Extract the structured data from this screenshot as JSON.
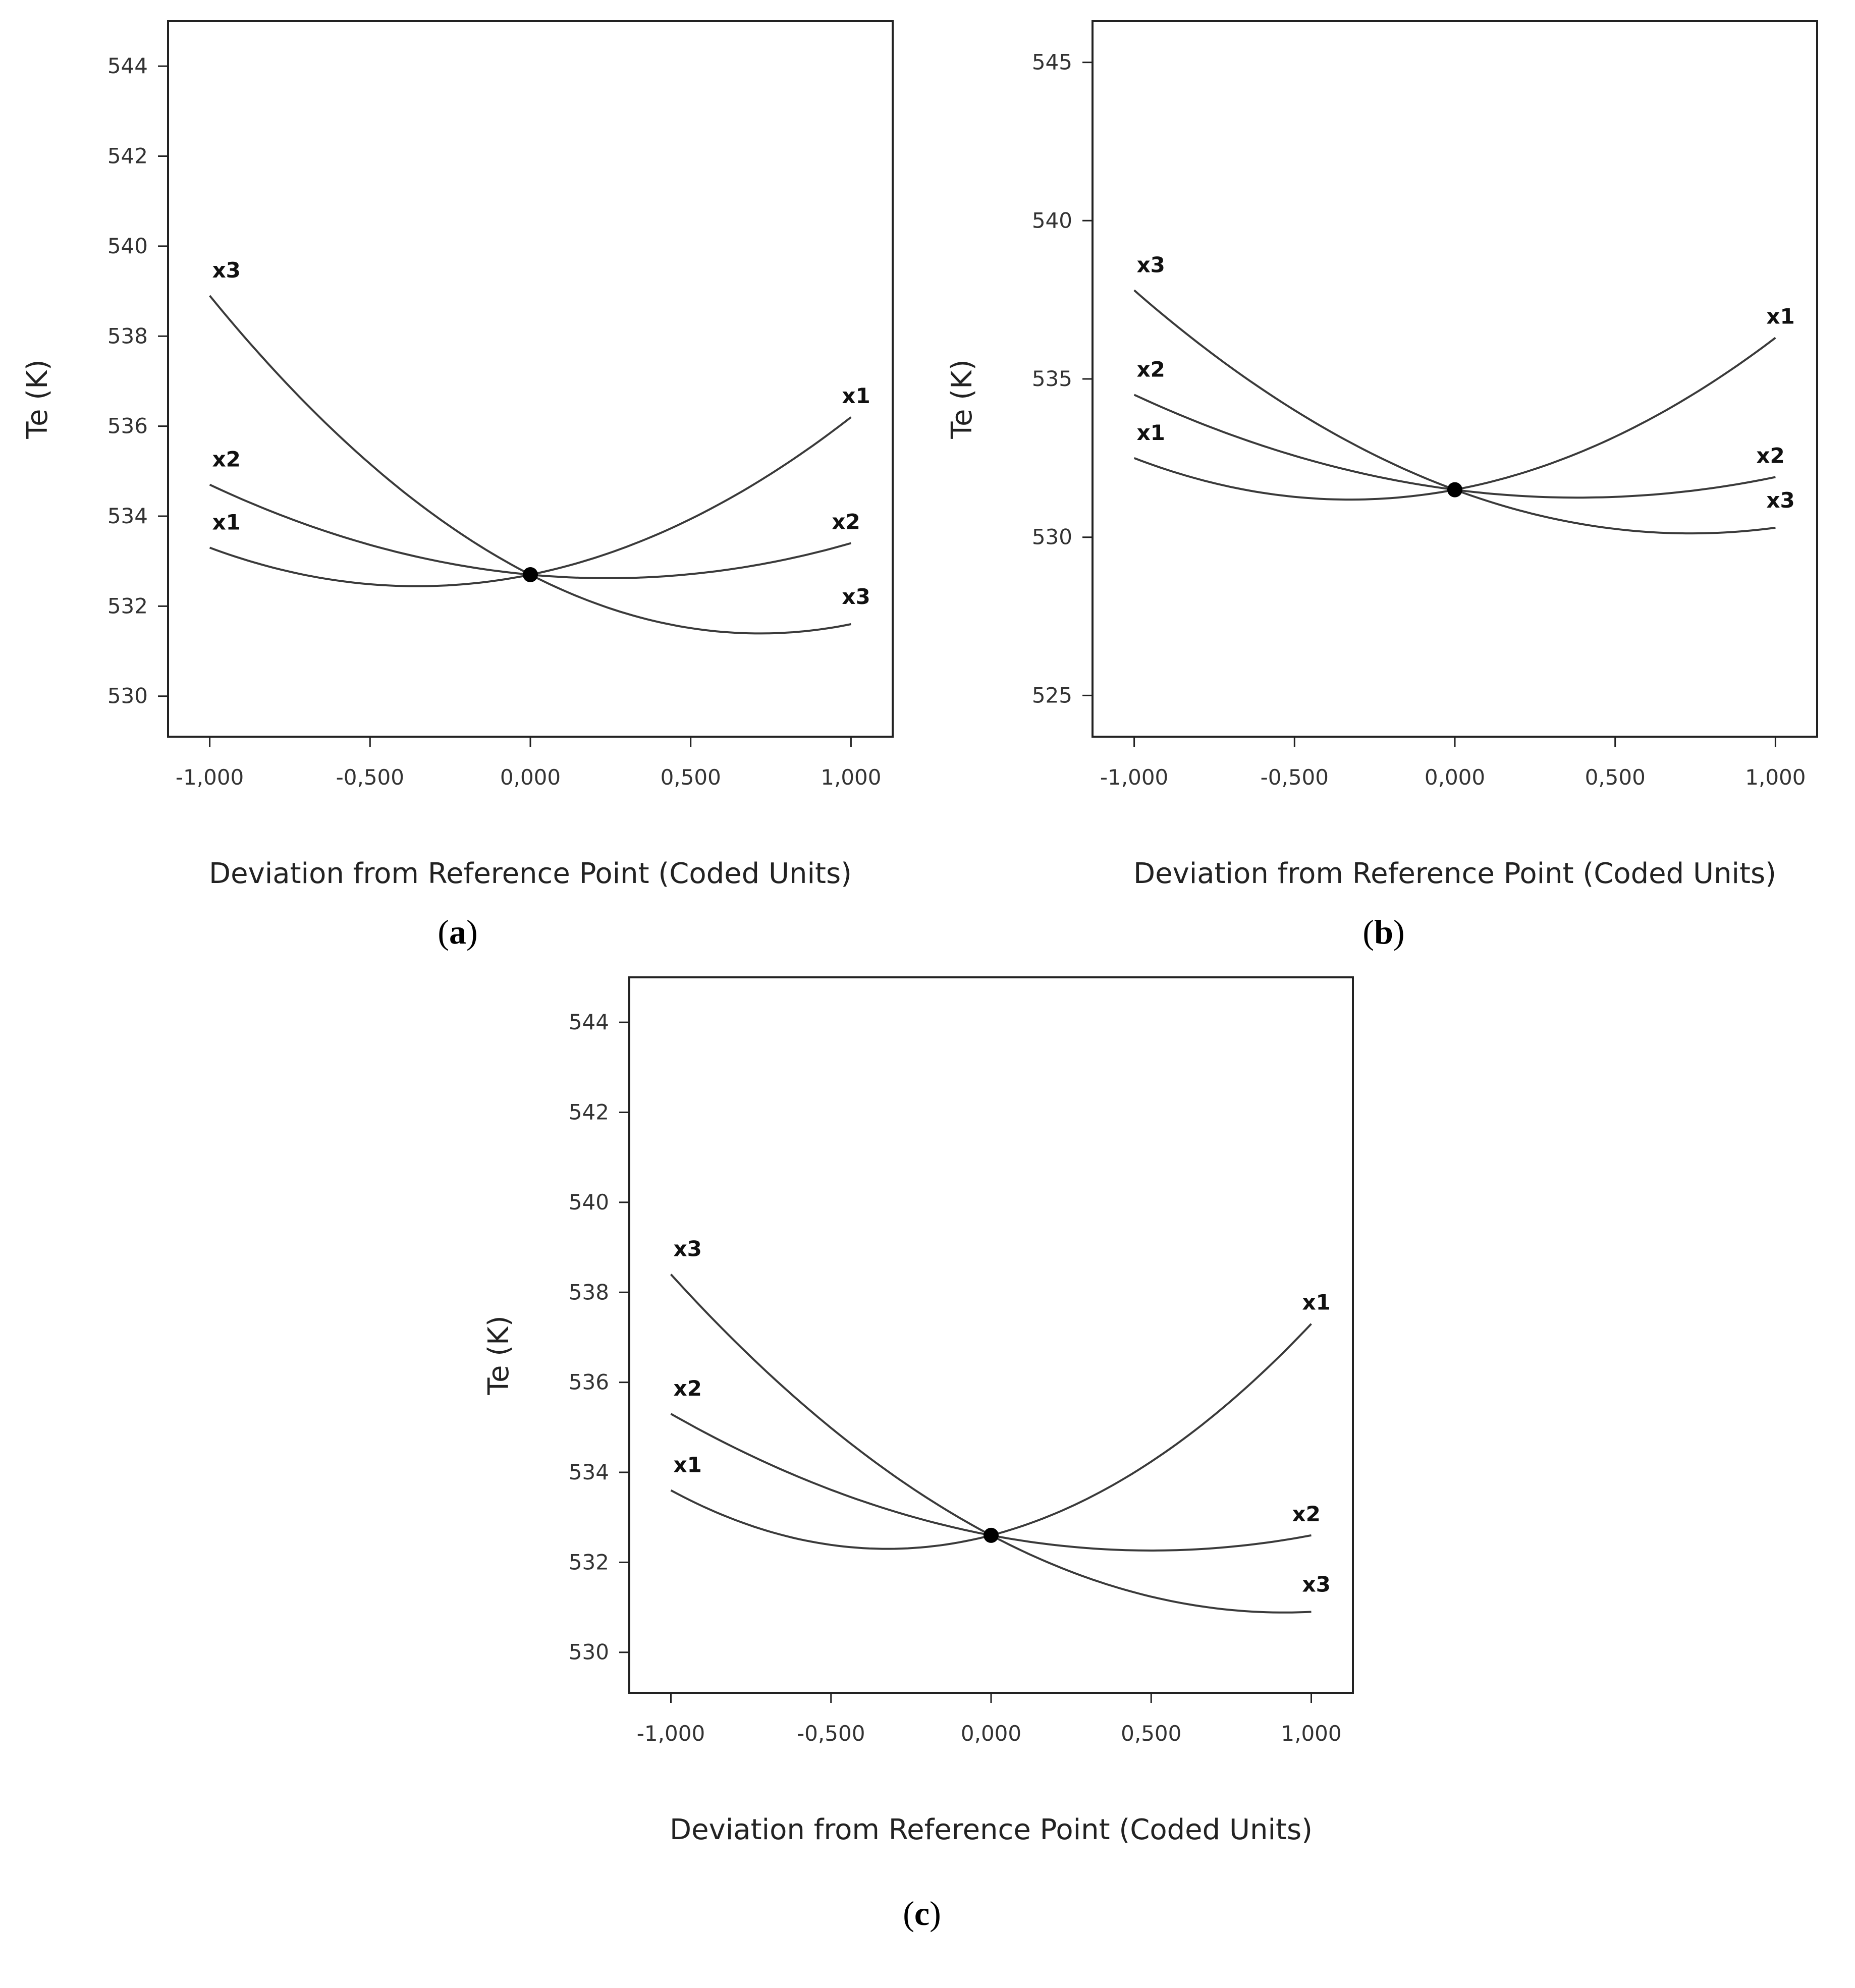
{
  "chart_data": [
    {
      "type": "line",
      "panel": "a",
      "xlabel": "Deviation from Reference Point (Coded Units)",
      "ylabel": "Te (K)",
      "xlim": [
        -1.13,
        1.13
      ],
      "ylim": [
        529.1,
        545.0
      ],
      "xticks": [
        -1,
        -0.5,
        0,
        0.5,
        1
      ],
      "xtick_labels": [
        "-1,000",
        "-0,500",
        "0,000",
        "0,500",
        "1,000"
      ],
      "yticks": [
        530,
        532,
        534,
        536,
        538,
        540,
        542,
        544
      ],
      "ytick_labels": [
        "530",
        "532",
        "534",
        "536",
        "538",
        "540",
        "542",
        "544"
      ],
      "grid": false,
      "reference_point": {
        "x": 0,
        "y": 532.7
      },
      "series": [
        {
          "name": "x1",
          "x": [
            -1,
            -0.5,
            0,
            0.5,
            1
          ],
          "values": [
            533.3,
            532.5,
            532.7,
            534.0,
            536.2
          ]
        },
        {
          "name": "x2",
          "x": [
            -1,
            -0.5,
            0,
            0.5,
            1
          ],
          "values": [
            534.7,
            533.4,
            532.7,
            532.6,
            533.4
          ]
        },
        {
          "name": "x3",
          "x": [
            -1,
            -0.5,
            0,
            0.5,
            1
          ],
          "values": [
            538.9,
            535.3,
            532.7,
            531.5,
            531.6
          ]
        }
      ]
    },
    {
      "type": "line",
      "panel": "b",
      "xlabel": "Deviation from Reference Point (Coded Units)",
      "ylabel": "Te (K)",
      "xlim": [
        -1.13,
        1.13
      ],
      "ylim": [
        523.7,
        546.3
      ],
      "xticks": [
        -1,
        -0.5,
        0,
        0.5,
        1
      ],
      "xtick_labels": [
        "-1,000",
        "-0,500",
        "0,000",
        "0,500",
        "1,000"
      ],
      "yticks": [
        525,
        530,
        535,
        540,
        545
      ],
      "ytick_labels": [
        "525",
        "530",
        "535",
        "540",
        "545"
      ],
      "grid": false,
      "reference_point": {
        "x": 0,
        "y": 531.5
      },
      "series": [
        {
          "name": "x1",
          "x": [
            -1,
            -0.5,
            0,
            0.5,
            1
          ],
          "values": [
            532.5,
            531.2,
            531.5,
            533.3,
            536.3
          ]
        },
        {
          "name": "x2",
          "x": [
            -1,
            -0.5,
            0,
            0.5,
            1
          ],
          "values": [
            534.5,
            532.6,
            531.5,
            531.3,
            531.9
          ]
        },
        {
          "name": "x3",
          "x": [
            -1,
            -0.5,
            0,
            0.5,
            1
          ],
          "values": [
            537.8,
            534.2,
            531.5,
            530.3,
            530.3
          ]
        }
      ]
    },
    {
      "type": "line",
      "panel": "c",
      "xlabel": "Deviation from Reference Point (Coded Units)",
      "ylabel": "Te (K)",
      "xlim": [
        -1.13,
        1.13
      ],
      "ylim": [
        529.1,
        545.0
      ],
      "xticks": [
        -1,
        -0.5,
        0,
        0.5,
        1
      ],
      "xtick_labels": [
        "-1,000",
        "-0,500",
        "0,000",
        "0,500",
        "1,000"
      ],
      "yticks": [
        530,
        532,
        534,
        536,
        538,
        540,
        542,
        544
      ],
      "ytick_labels": [
        "530",
        "532",
        "534",
        "536",
        "538",
        "540",
        "542",
        "544"
      ],
      "grid": false,
      "reference_point": {
        "x": 0,
        "y": 532.6
      },
      "series": [
        {
          "name": "x1",
          "x": [
            -1,
            -0.5,
            0,
            0.5,
            1
          ],
          "values": [
            533.6,
            532.4,
            532.6,
            534.3,
            537.3
          ]
        },
        {
          "name": "x2",
          "x": [
            -1,
            -0.5,
            0,
            0.5,
            1
          ],
          "values": [
            535.3,
            533.7,
            532.6,
            532.3,
            532.6
          ]
        },
        {
          "name": "x3",
          "x": [
            -1,
            -0.5,
            0,
            0.5,
            1
          ],
          "values": [
            538.4,
            535.1,
            532.6,
            531.3,
            530.9
          ]
        }
      ]
    }
  ],
  "panel_labels": [
    {
      "open": "(",
      "letter": "a",
      "close": ")"
    },
    {
      "open": "(",
      "letter": "b",
      "close": ")"
    },
    {
      "open": "(",
      "letter": "c",
      "close": ")"
    }
  ],
  "colors": {
    "line": "#3a3a3a",
    "axis": "#222222",
    "marker": "#000000"
  }
}
